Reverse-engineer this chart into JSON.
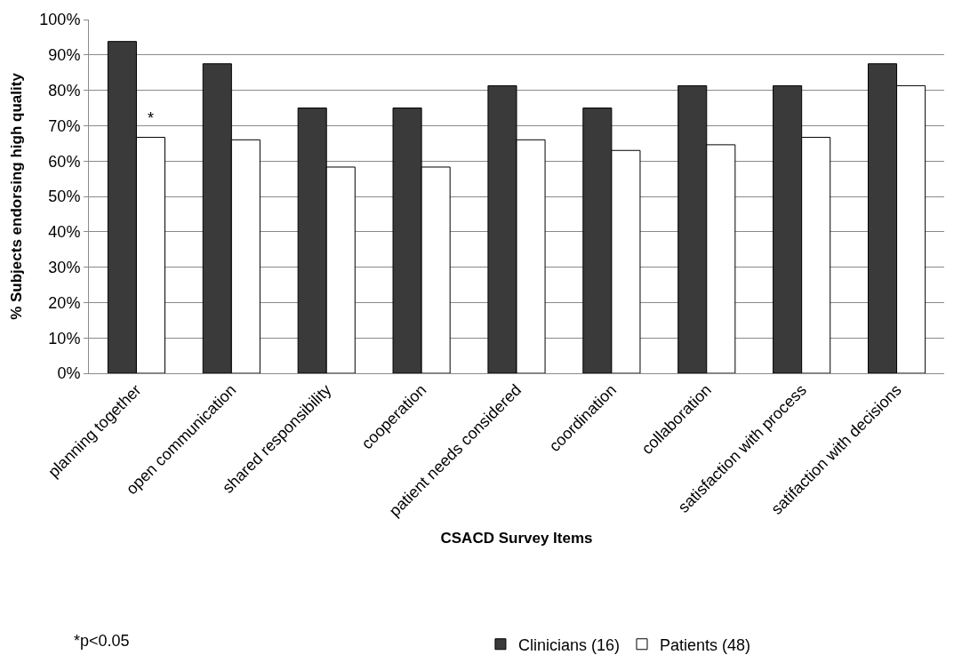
{
  "chart_data": {
    "type": "bar",
    "xlabel": "CSACD Survey Items",
    "ylabel": "% Subjects endorsing high quality",
    "categories": [
      "planning together",
      "open communication",
      "shared responsibility",
      "cooperation",
      "patient needs considered",
      "coordination",
      "collaboration",
      "satisfaction with process",
      "satifaction with decisions"
    ],
    "series": [
      {
        "name": "Clinicians (16)",
        "color": "#3a3a3a",
        "values": [
          93.8,
          87.5,
          75,
          75,
          81.3,
          75,
          81.3,
          81.3,
          87.5
        ]
      },
      {
        "name": "Patients (48)",
        "color": "#ffffff",
        "values": [
          66.7,
          66,
          58.3,
          58.3,
          66,
          63,
          64.6,
          66.7,
          81.3
        ]
      }
    ],
    "ylim": [
      0,
      100
    ],
    "yticks": [
      {
        "value": 0,
        "label": "0%"
      },
      {
        "value": 10,
        "label": "10%"
      },
      {
        "value": 20,
        "label": "20%"
      },
      {
        "value": 30,
        "label": "30%"
      },
      {
        "value": 40,
        "label": "40%"
      },
      {
        "value": 50,
        "label": "50%"
      },
      {
        "value": 60,
        "label": "60%"
      },
      {
        "value": 70,
        "label": "70%"
      },
      {
        "value": 80,
        "label": "80%"
      },
      {
        "value": 90,
        "label": "90%"
      },
      {
        "value": 100,
        "label": "100%"
      }
    ],
    "grid": "y",
    "legend": "bottom",
    "annotations": [
      {
        "text": "*",
        "x": "planning together",
        "y": 69
      },
      "*p<0.05"
    ]
  }
}
